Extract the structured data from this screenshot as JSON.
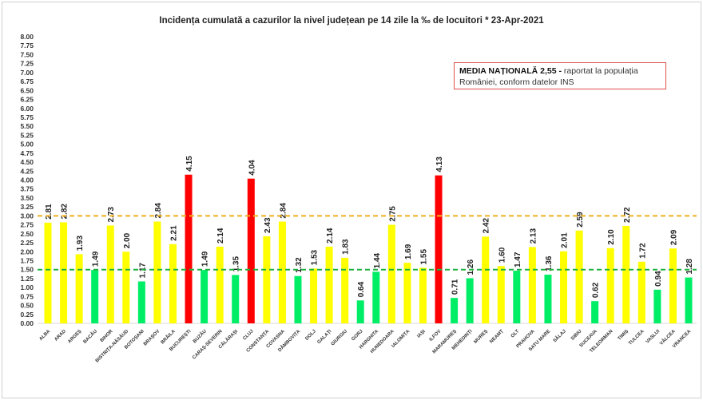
{
  "chart_data": {
    "type": "bar",
    "title": "Incidența cumulată a cazurilor la nivel județean pe 14 zile la ‰ de locuitori *   23-Apr-2021",
    "categories": [
      "ALBA",
      "ARAD",
      "ARGEȘ",
      "BACĂU",
      "BIHOR",
      "BISTRIȚA-NĂSĂUD",
      "BOTOȘANI",
      "BRAȘOV",
      "BRĂILA",
      "BUCUREȘTI",
      "BUZĂU",
      "CARAȘ-SEVERIN",
      "CĂLĂRAȘI",
      "CLUJ",
      "CONSTANȚA",
      "COVASNA",
      "DÂMBOVIȚA",
      "DOLJ",
      "GALAȚI",
      "GIURGIU",
      "GORJ",
      "HARGHITA",
      "HUNEDOARA",
      "IALOMIȚA",
      "IAȘI",
      "ILFOV",
      "MARAMUREȘ",
      "MEHEDINȚI",
      "MUREȘ",
      "NEAMȚ",
      "OLT",
      "PRAHOVA",
      "SATU MARE",
      "SĂLAJ",
      "SIBIU",
      "SUCEAVA",
      "TELEORMAN",
      "TIMIȘ",
      "TULCEA",
      "VASLUI",
      "VÂLCEA",
      "VRANCEA"
    ],
    "values": [
      2.81,
      2.82,
      1.93,
      1.49,
      2.73,
      2.0,
      1.17,
      2.84,
      2.21,
      4.15,
      1.49,
      2.14,
      1.35,
      4.04,
      2.43,
      2.84,
      1.32,
      1.53,
      2.14,
      1.83,
      0.64,
      1.44,
      2.75,
      1.69,
      1.55,
      4.13,
      0.71,
      1.26,
      2.42,
      1.6,
      1.47,
      2.13,
      1.36,
      2.01,
      2.59,
      0.62,
      2.1,
      2.72,
      1.72,
      0.94,
      2.09,
      1.28
    ],
    "ylim": [
      0,
      8
    ],
    "ytick_step": 0.25,
    "reference_lines": [
      {
        "value": 3.0,
        "color": "#f0b020",
        "style": "dashed"
      },
      {
        "value": 1.5,
        "color": "#20b040",
        "style": "dashed"
      }
    ],
    "colors": {
      "low": "#00ee66",
      "mid": "#ffff00",
      "high": "#ff0000"
    },
    "thresholds": [
      1.5,
      3.0
    ],
    "grid": false,
    "legend": "none"
  },
  "note": {
    "bold": "MEDIA NAȚIONALĂ  2,55 -",
    "text": " raportat la populația României, conform datelor INS"
  }
}
